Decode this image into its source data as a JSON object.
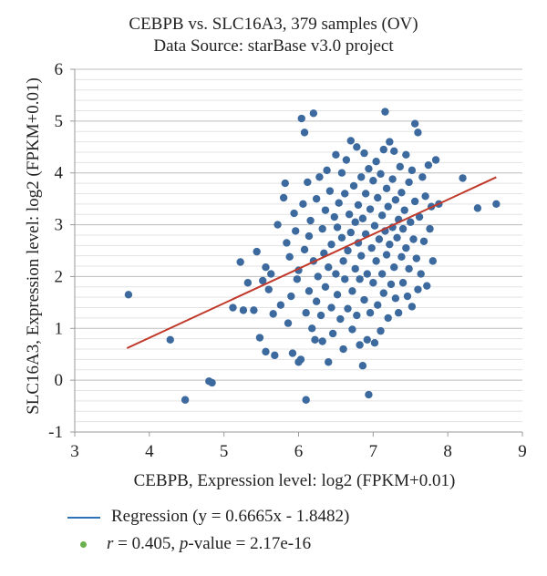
{
  "chart_data": {
    "type": "scatter",
    "title": "CEBPB vs. SLC16A3, 379 samples (OV)",
    "subtitle": "Data Source: starBase v3.0 project",
    "xlabel": "CEBPB, Expression level: log2 (FPKM+0.01)",
    "ylabel": "SLC16A3, Expression level: log2 (FPKM+0.01)",
    "xlim": [
      3,
      9
    ],
    "ylim": [
      -1,
      6
    ],
    "xticks": [
      "3",
      "4",
      "5",
      "6",
      "7",
      "8",
      "9"
    ],
    "yticks": [
      "-1",
      "0",
      "1",
      "2",
      "3",
      "4",
      "5",
      "6"
    ],
    "grid": true,
    "regression": {
      "slope": 0.6665,
      "intercept": -1.8482,
      "x_range": [
        3.7,
        8.65
      ],
      "color": "#c0392b"
    },
    "point_color": "#3d6a9e",
    "legend": {
      "regression_label": "Regression (y = 0.6665x - 1.8482)",
      "r_symbol": "r",
      "r_text": " = 0.405, ",
      "p_symbol": "p",
      "p_text": "-value = 2.17e-16",
      "line_color": "#2f6fb5",
      "dot_color": "#6ab04c"
    },
    "points": [
      [
        3.72,
        1.65
      ],
      [
        4.28,
        0.78
      ],
      [
        4.48,
        -0.38
      ],
      [
        4.8,
        -0.02
      ],
      [
        4.84,
        -0.05
      ],
      [
        5.12,
        1.4
      ],
      [
        5.22,
        2.28
      ],
      [
        5.26,
        1.35
      ],
      [
        5.32,
        1.88
      ],
      [
        5.4,
        1.35
      ],
      [
        5.44,
        2.48
      ],
      [
        5.48,
        0.82
      ],
      [
        5.52,
        1.92
      ],
      [
        5.56,
        0.55
      ],
      [
        5.56,
        2.18
      ],
      [
        5.6,
        1.75
      ],
      [
        5.63,
        2.05
      ],
      [
        5.66,
        1.28
      ],
      [
        5.68,
        0.48
      ],
      [
        5.72,
        3.0
      ],
      [
        5.76,
        1.45
      ],
      [
        5.8,
        3.52
      ],
      [
        5.82,
        3.8
      ],
      [
        5.84,
        2.65
      ],
      [
        5.86,
        1.1
      ],
      [
        5.88,
        2.38
      ],
      [
        5.9,
        1.62
      ],
      [
        5.92,
        0.52
      ],
      [
        5.94,
        3.22
      ],
      [
        5.96,
        2.88
      ],
      [
        5.98,
        1.95
      ],
      [
        6.0,
        0.35
      ],
      [
        6.0,
        2.12
      ],
      [
        6.03,
        0.4
      ],
      [
        6.04,
        5.05
      ],
      [
        6.06,
        3.4
      ],
      [
        6.08,
        4.78
      ],
      [
        6.08,
        2.52
      ],
      [
        6.1,
        1.3
      ],
      [
        6.1,
        -0.38
      ],
      [
        6.12,
        3.82
      ],
      [
        6.14,
        2.78
      ],
      [
        6.14,
        1.72
      ],
      [
        6.16,
        3.08
      ],
      [
        6.18,
        1.0
      ],
      [
        6.2,
        5.15
      ],
      [
        6.2,
        2.3
      ],
      [
        6.22,
        0.78
      ],
      [
        6.24,
        3.5
      ],
      [
        6.24,
        1.52
      ],
      [
        6.26,
        2.0
      ],
      [
        6.28,
        3.92
      ],
      [
        6.3,
        1.25
      ],
      [
        6.32,
        2.92
      ],
      [
        6.32,
        0.75
      ],
      [
        6.34,
        2.45
      ],
      [
        6.36,
        3.28
      ],
      [
        6.36,
        1.8
      ],
      [
        6.38,
        4.05
      ],
      [
        6.4,
        2.18
      ],
      [
        6.4,
        0.35
      ],
      [
        6.42,
        3.65
      ],
      [
        6.44,
        2.62
      ],
      [
        6.44,
        1.4
      ],
      [
        6.46,
        0.9
      ],
      [
        6.48,
        3.15
      ],
      [
        6.5,
        4.35
      ],
      [
        6.5,
        2.05
      ],
      [
        6.52,
        1.65
      ],
      [
        6.52,
        2.95
      ],
      [
        6.54,
        3.42
      ],
      [
        6.56,
        1.18
      ],
      [
        6.58,
        2.75
      ],
      [
        6.58,
        4.0
      ],
      [
        6.6,
        2.3
      ],
      [
        6.6,
        0.6
      ],
      [
        6.62,
        3.6
      ],
      [
        6.62,
        1.95
      ],
      [
        6.64,
        4.25
      ],
      [
        6.66,
        2.5
      ],
      [
        6.66,
        1.38
      ],
      [
        6.68,
        3.2
      ],
      [
        6.7,
        4.62
      ],
      [
        6.7,
        2.85
      ],
      [
        6.72,
        1.72
      ],
      [
        6.72,
        0.98
      ],
      [
        6.74,
        3.75
      ],
      [
        6.76,
        2.15
      ],
      [
        6.76,
        3.05
      ],
      [
        6.78,
        4.5
      ],
      [
        6.78,
        1.25
      ],
      [
        6.8,
        2.65
      ],
      [
        6.8,
        3.38
      ],
      [
        6.82,
        0.68
      ],
      [
        6.82,
        1.95
      ],
      [
        6.84,
        3.92
      ],
      [
        6.84,
        2.4
      ],
      [
        6.86,
        0.28
      ],
      [
        6.86,
        3.12
      ],
      [
        6.88,
        4.38
      ],
      [
        6.88,
        1.55
      ],
      [
        6.9,
        2.82
      ],
      [
        6.9,
        3.6
      ],
      [
        6.92,
        2.05
      ],
      [
        6.92,
        0.78
      ],
      [
        6.94,
        4.08
      ],
      [
        6.94,
        -0.28
      ],
      [
        6.96,
        3.3
      ],
      [
        6.96,
        1.3
      ],
      [
        6.98,
        2.55
      ],
      [
        7.0,
        3.85
      ],
      [
        7.0,
        1.88
      ],
      [
        7.02,
        0.72
      ],
      [
        7.02,
        2.98
      ],
      [
        7.04,
        4.22
      ],
      [
        7.04,
        2.3
      ],
      [
        7.06,
        3.52
      ],
      [
        7.06,
        1.45
      ],
      [
        7.08,
        2.72
      ],
      [
        7.1,
        3.98
      ],
      [
        7.1,
        0.95
      ],
      [
        7.12,
        3.18
      ],
      [
        7.12,
        2.05
      ],
      [
        7.14,
        4.45
      ],
      [
        7.14,
        1.68
      ],
      [
        7.16,
        2.88
      ],
      [
        7.16,
        5.18
      ],
      [
        7.18,
        3.7
      ],
      [
        7.18,
        2.42
      ],
      [
        7.2,
        1.2
      ],
      [
        7.2,
        3.35
      ],
      [
        7.22,
        4.6
      ],
      [
        7.22,
        2.62
      ],
      [
        7.24,
        1.85
      ],
      [
        7.26,
        3.88
      ],
      [
        7.26,
        2.95
      ],
      [
        7.28,
        4.42
      ],
      [
        7.28,
        2.18
      ],
      [
        7.3,
        1.58
      ],
      [
        7.3,
        3.48
      ],
      [
        7.32,
        2.75
      ],
      [
        7.34,
        3.1
      ],
      [
        7.34,
        1.3
      ],
      [
        7.36,
        4.12
      ],
      [
        7.38,
        2.38
      ],
      [
        7.38,
        3.62
      ],
      [
        7.4,
        1.88
      ],
      [
        7.4,
        2.92
      ],
      [
        7.42,
        3.28
      ],
      [
        7.44,
        4.35
      ],
      [
        7.44,
        2.55
      ],
      [
        7.46,
        1.62
      ],
      [
        7.48,
        3.82
      ],
      [
        7.48,
        2.15
      ],
      [
        7.5,
        3.05
      ],
      [
        7.52,
        4.05
      ],
      [
        7.52,
        1.42
      ],
      [
        7.54,
        2.72
      ],
      [
        7.56,
        4.95
      ],
      [
        7.56,
        3.45
      ],
      [
        7.58,
        2.35
      ],
      [
        7.6,
        4.78
      ],
      [
        7.6,
        1.75
      ],
      [
        7.62,
        3.15
      ],
      [
        7.64,
        2.05
      ],
      [
        7.66,
        3.92
      ],
      [
        7.68,
        2.68
      ],
      [
        7.7,
        3.55
      ],
      [
        7.72,
        1.82
      ],
      [
        7.74,
        4.15
      ],
      [
        7.76,
        2.92
      ],
      [
        7.78,
        3.35
      ],
      [
        7.8,
        2.3
      ],
      [
        7.84,
        4.25
      ],
      [
        7.88,
        3.4
      ],
      [
        8.2,
        3.9
      ],
      [
        8.4,
        3.32
      ],
      [
        8.65,
        3.4
      ]
    ]
  }
}
